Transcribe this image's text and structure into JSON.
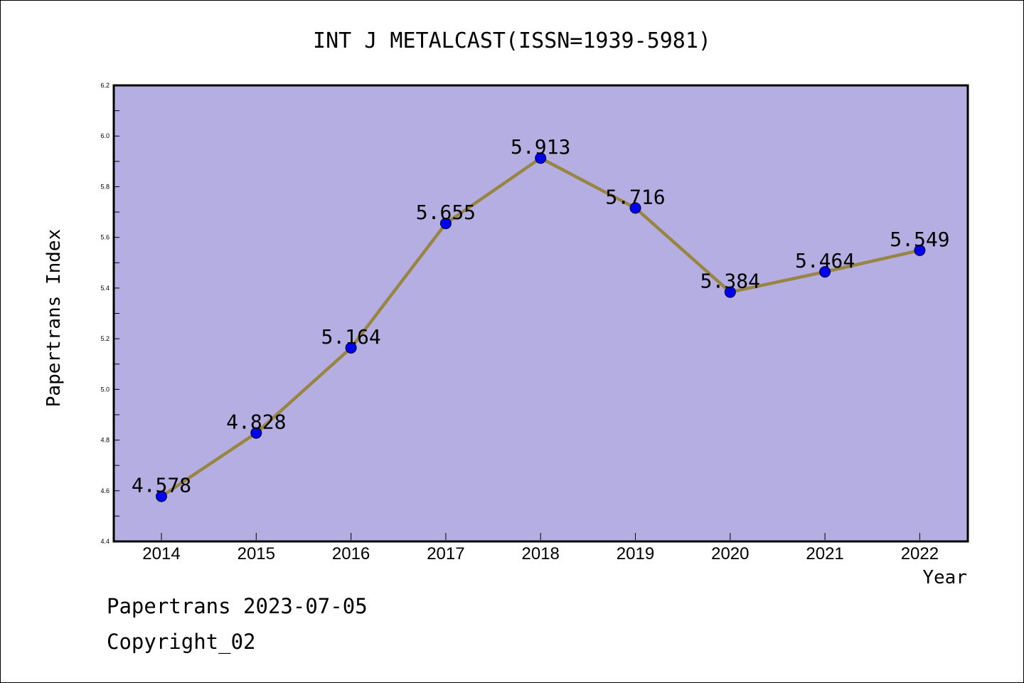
{
  "chart_data": {
    "type": "line",
    "title": "INT J METALCAST(ISSN=1939-5981)",
    "xlabel": "Year",
    "ylabel": "Papertrans Index",
    "categories": [
      "2014",
      "2015",
      "2016",
      "2017",
      "2018",
      "2019",
      "2020",
      "2021",
      "2022"
    ],
    "values": [
      4.578,
      4.828,
      5.164,
      5.655,
      5.913,
      5.716,
      5.384,
      5.464,
      5.549
    ],
    "data_labels": [
      "4.578",
      "4.828",
      "5.164",
      "5.655",
      "5.913",
      "5.716",
      "5.384",
      "5.464",
      "5.549"
    ],
    "ylim": [
      4.4,
      6.2
    ],
    "yticks": [
      "4.4",
      "4.6",
      "4.8",
      "5.0",
      "5.2",
      "5.4",
      "5.6",
      "5.8",
      "6.0",
      "6.2"
    ],
    "grid": false,
    "colors": {
      "plot_background": "#b4aee2",
      "line": "#998542",
      "marker": "#0000ee"
    }
  },
  "footer": {
    "line1": "Papertrans 2023-07-05",
    "line2": "Copyright_02"
  }
}
